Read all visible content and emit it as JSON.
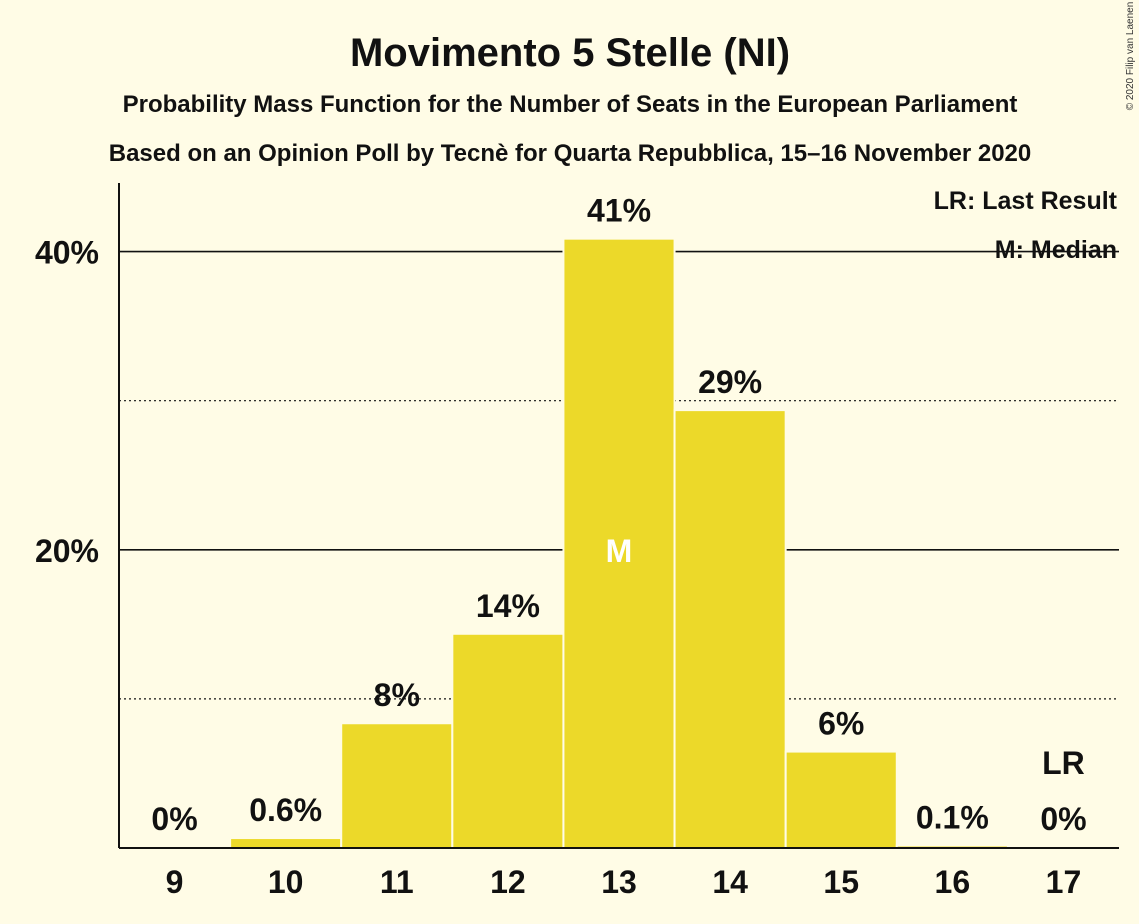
{
  "chart_data": {
    "type": "bar",
    "title": "Movimento 5 Stelle (NI)",
    "subtitle": "Probability Mass Function for the Number of Seats in the European Parliament",
    "subtitle2": "Based on an Opinion Poll by Tecnè for Quarta Repubblica, 15–16 November 2020",
    "copyright": "© 2020 Filip van Laenen",
    "categories": [
      "9",
      "10",
      "11",
      "12",
      "13",
      "14",
      "15",
      "16",
      "17"
    ],
    "values": [
      0,
      0.6,
      8.3,
      14.3,
      40.8,
      29.3,
      6.4,
      0.1,
      0
    ],
    "value_labels": [
      "0%",
      "0.6%",
      "8%",
      "14%",
      "41%",
      "29%",
      "6%",
      "0.1%",
      "0%"
    ],
    "ylim": [
      0,
      44.6
    ],
    "y_major_ticks": [
      20,
      40
    ],
    "y_major_tick_labels": [
      "20%",
      "40%"
    ],
    "y_minor_gridlines": [
      10,
      30
    ],
    "median_category": "13",
    "median_marker": "M",
    "last_result_category": "17",
    "last_result_marker": "LR",
    "legend": [
      "LR: Last Result",
      "M: Median"
    ],
    "legend_position": "top-right",
    "bar_color": "#ecd929",
    "background_color": "#fffce6"
  }
}
